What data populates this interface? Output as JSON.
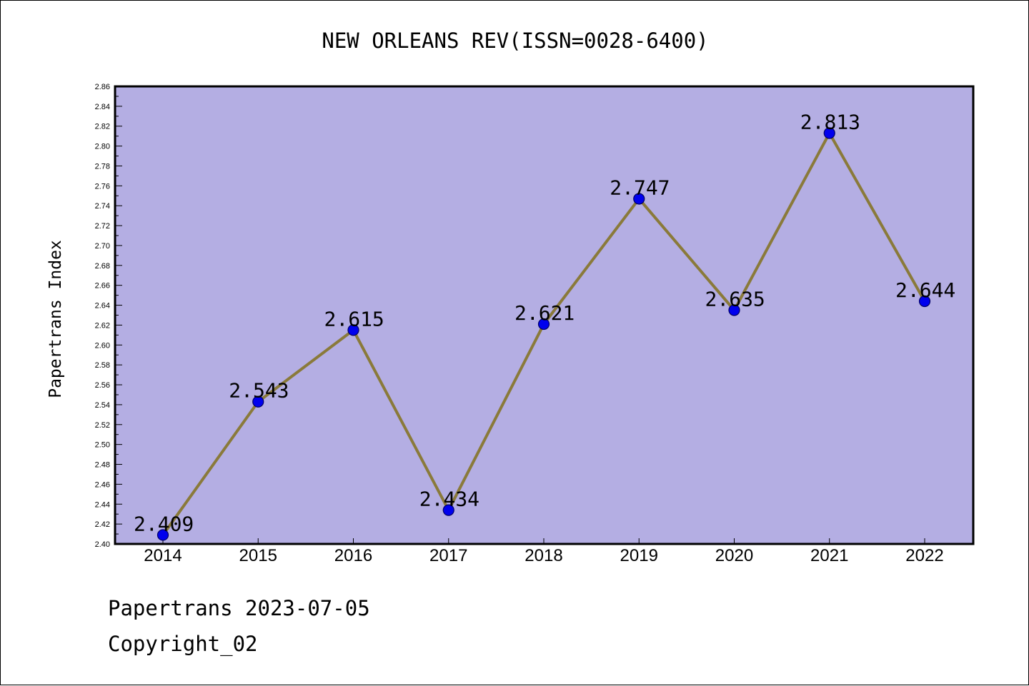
{
  "chart_data": {
    "type": "line",
    "title": "NEW ORLEANS REV(ISSN=0028-6400)",
    "ylabel": "Papertrans Index",
    "xlabel": "",
    "categories": [
      "2014",
      "2015",
      "2016",
      "2017",
      "2018",
      "2019",
      "2020",
      "2021",
      "2022"
    ],
    "series": [
      {
        "values": [
          2.409,
          2.543,
          2.615,
          2.434,
          2.621,
          2.747,
          2.635,
          2.813,
          2.644
        ],
        "labels": [
          "2.409",
          "2.543",
          "2.615",
          "2.434",
          "2.621",
          "2.747",
          "2.635",
          "2.813",
          "2.644"
        ]
      }
    ],
    "ylim": [
      2.4,
      2.86
    ],
    "ytick_step": 0.02,
    "ytick_labels": [
      "2.40",
      "2.42",
      "2.44",
      "2.46",
      "2.48",
      "2.50",
      "2.52",
      "2.54",
      "2.56",
      "2.58",
      "2.60",
      "2.62",
      "2.64",
      "2.66",
      "2.68",
      "2.70",
      "2.72",
      "2.74",
      "2.76",
      "2.78",
      "2.80",
      "2.82",
      "2.84",
      "2.86"
    ],
    "grid": false,
    "legend": "none",
    "colors": {
      "plot_background": "#b4aee3",
      "line": "#8a7a3a",
      "marker_fill": "#0000ee",
      "marker_edge": "#000066",
      "axis": "#000000"
    }
  },
  "footer": {
    "line1": "Papertrans 2023-07-05",
    "line2": "Copyright_02"
  }
}
